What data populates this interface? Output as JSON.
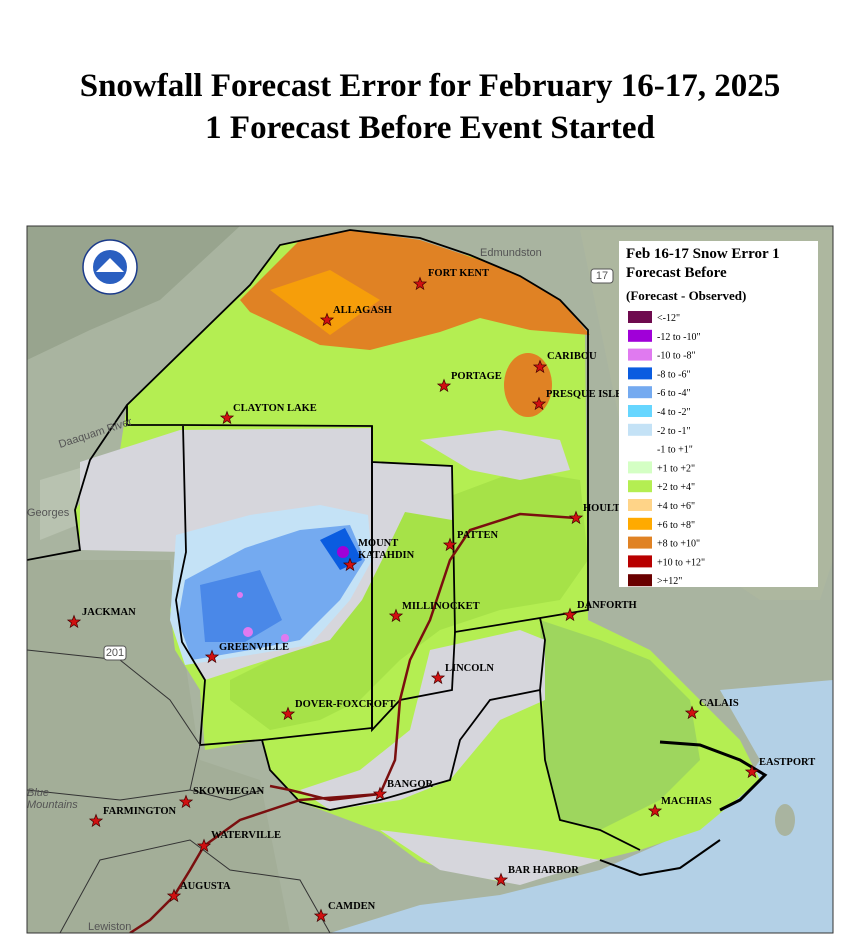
{
  "title": [
    "Snowfall Forecast Error for February 16-17, 2025",
    "1 Forecast Before Event Started"
  ],
  "legend": {
    "title": [
      "Feb 16-17 Snow Error 1",
      "Forecast Before"
    ],
    "subtitle": "(Forecast - Observed)",
    "items": [
      {
        "label": "<-12\"",
        "color": "#6e0a4e"
      },
      {
        "label": "-12 to -10\"",
        "color": "#a000d8"
      },
      {
        "label": "-10 to -8\"",
        "color": "#e07af0"
      },
      {
        "label": "-8 to -6\"",
        "color": "#0a5ce0"
      },
      {
        "label": "-6 to -4\"",
        "color": "#74aaf0"
      },
      {
        "label": "-4 to -2\"",
        "color": "#66d6ff"
      },
      {
        "label": "-2 to -1\"",
        "color": "#c4e2f6"
      },
      {
        "label": "-1 to +1\"",
        "color": "#ffffff"
      },
      {
        "label": "+1 to +2\"",
        "color": "#d4ffc4"
      },
      {
        "label": "+2 to +4\"",
        "color": "#b4ee52"
      },
      {
        "label": "+4 to +6\"",
        "color": "#ffd488"
      },
      {
        "label": "+6 to +8\"",
        "color": "#ffaa00"
      },
      {
        "label": "+8 to +10\"",
        "color": "#e08224"
      },
      {
        "label": "+10 to +12\"",
        "color": "#b80000"
      },
      {
        "label": ">+12\"",
        "color": "#6a0000"
      }
    ]
  },
  "cities": [
    {
      "lines": [
        "FORT KENT"
      ]
    },
    {
      "lines": [
        "ALLAGASH"
      ]
    },
    {
      "lines": [
        "CARIBOU"
      ]
    },
    {
      "lines": [
        "PORTAGE"
      ]
    },
    {
      "lines": [
        "PRESQUE ISLE"
      ]
    },
    {
      "lines": [
        "CLAYTON LAKE"
      ]
    },
    {
      "lines": [
        "HOULTON"
      ]
    },
    {
      "lines": [
        "MOUNT",
        "KATAHDIN"
      ]
    },
    {
      "lines": [
        "PATTEN"
      ]
    },
    {
      "lines": [
        "MILLINOCKET"
      ]
    },
    {
      "lines": [
        "DANFORTH"
      ]
    },
    {
      "lines": [
        "JACKMAN"
      ]
    },
    {
      "lines": [
        "GREENVILLE"
      ]
    },
    {
      "lines": [
        "LINCOLN"
      ]
    },
    {
      "lines": [
        "CALAIS"
      ]
    },
    {
      "lines": [
        "DOVER-FOXCROFT"
      ]
    },
    {
      "lines": [
        "EASTPORT"
      ]
    },
    {
      "lines": [
        "BANGOR"
      ]
    },
    {
      "lines": [
        "SKOWHEGAN"
      ]
    },
    {
      "lines": [
        "MACHIAS"
      ]
    },
    {
      "lines": [
        "FARMINGTON"
      ]
    },
    {
      "lines": [
        "WATERVILLE"
      ]
    },
    {
      "lines": [
        "BAR HARBOR"
      ]
    },
    {
      "lines": [
        "AUGUSTA"
      ]
    },
    {
      "lines": [
        "CAMDEN"
      ]
    }
  ],
  "basemap_labels": [
    "Edmundston",
    "Daaquam River",
    "Georges",
    "17",
    "201",
    "Blue",
    "Mountains",
    "Lewiston"
  ]
}
